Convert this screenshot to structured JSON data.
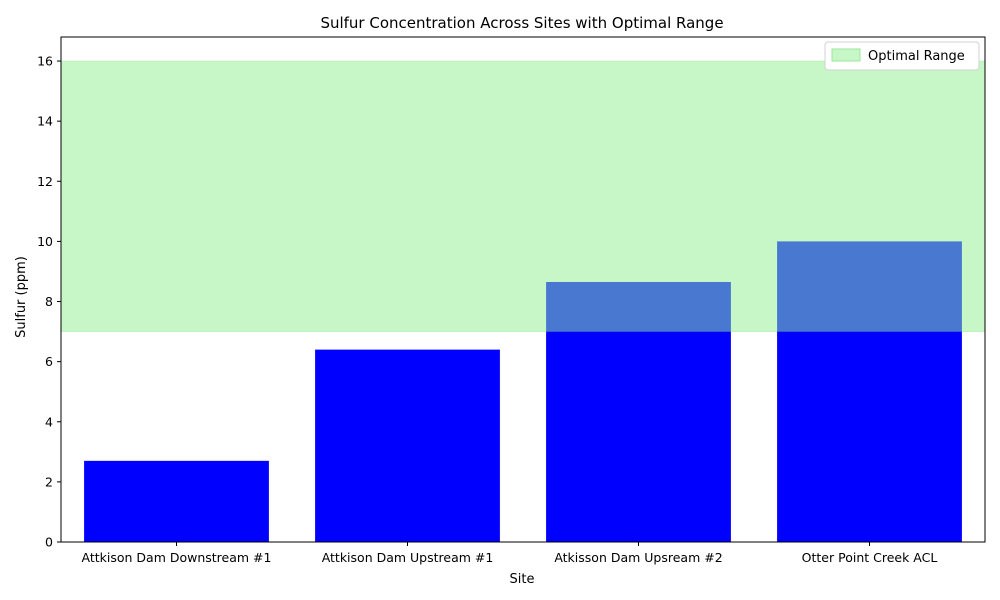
{
  "chart_data": {
    "type": "bar",
    "title": "Sulfur Concentration Across Sites with Optimal Range",
    "xlabel": "Site",
    "ylabel": "Sulfur (ppm)",
    "categories": [
      "Attkison Dam Downstream #1",
      "Attkison Dam Upstream #1",
      "Atkisson Dam Upsream #2",
      "Otter Point Creek ACL"
    ],
    "values": [
      2.7,
      6.4,
      8.65,
      10.0
    ],
    "ylim": [
      0,
      16.8
    ],
    "yticks": [
      0,
      2,
      4,
      6,
      8,
      10,
      12,
      14,
      16
    ],
    "optimal_range": {
      "label": "Optimal Range",
      "min": 7,
      "max": 16
    },
    "legend": {
      "position": "top-right",
      "entries": [
        "Optimal Range"
      ]
    },
    "grid": false,
    "colors": {
      "bar": "#0000ff",
      "optimal_fill": "#90ee90",
      "bar_in_range": "#4878cf"
    }
  }
}
